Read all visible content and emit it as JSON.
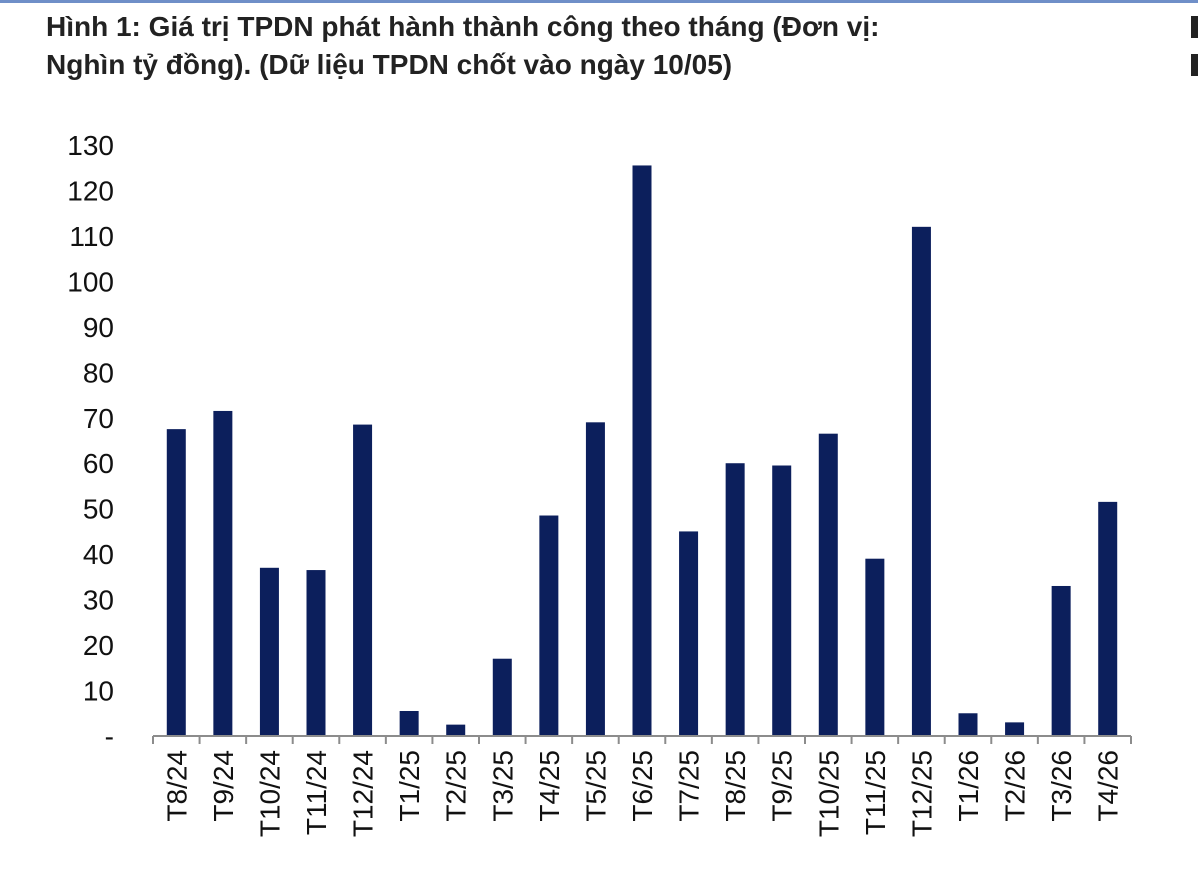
{
  "figure": {
    "title_line1": "Hình 1: Giá trị TPDN phát hành thành công theo tháng (Đơn vị:",
    "title_line2": "Nghìn tỷ đồng). (Dữ liệu TPDN chốt vào ngày 10/05)"
  },
  "colors": {
    "bar": "#0c1f5c",
    "axis": "#8c8c8c",
    "top_rule": "#6f8fc8"
  },
  "chart_data": {
    "type": "bar",
    "title": "Hình 1: Giá trị TPDN phát hành thành công theo tháng (Đơn vị: Nghìn tỷ đồng). (Dữ liệu TPDN chốt vào ngày 10/05)",
    "categories": [
      "T8/24",
      "T9/24",
      "T10/24",
      "T11/24",
      "T12/24",
      "T1/25",
      "T2/25",
      "T3/25",
      "T4/25",
      "T5/25",
      "T6/25",
      "T7/25",
      "T8/25",
      "T9/25",
      "T10/25",
      "T11/25",
      "T12/25",
      "T1/26",
      "T2/26",
      "T3/26",
      "T4/26"
    ],
    "values": [
      67.5,
      71.5,
      37,
      36.5,
      68.5,
      5.5,
      2.5,
      17,
      48.5,
      69,
      125.5,
      45,
      60,
      59.5,
      66.5,
      39,
      112,
      5,
      3,
      33,
      51.5
    ],
    "ylim": [
      0,
      130
    ],
    "yticks": [
      0,
      10,
      20,
      30,
      40,
      50,
      60,
      70,
      80,
      90,
      100,
      110,
      120,
      130
    ],
    "ytick_labels": [
      "-",
      "10",
      "20",
      "30",
      "40",
      "50",
      "60",
      "70",
      "80",
      "90",
      "100",
      "110",
      "120",
      "130"
    ],
    "xlabel": "",
    "ylabel": "",
    "grid": false,
    "legend": "none"
  }
}
